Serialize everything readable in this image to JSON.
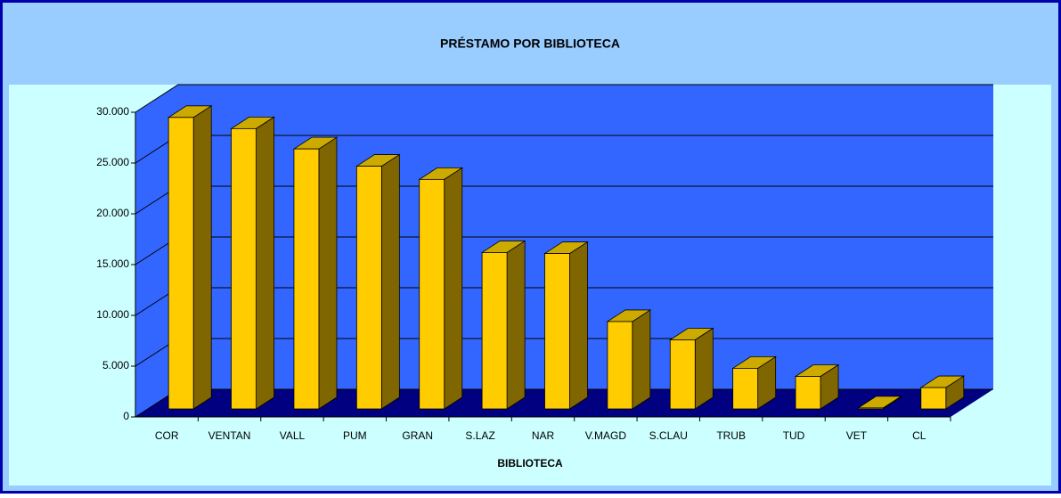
{
  "chart_data": {
    "type": "bar3d",
    "title": "PRÉSTAMO POR BIBLIOTECA",
    "x_label": "BIBLIOTECA",
    "categories": [
      "COR",
      "VENTAN",
      "VALL",
      "PUM",
      "GRAN",
      "S.LAZ",
      "NAR",
      "V.MAGD",
      "S.CLAU",
      "TRUB",
      "TUD",
      "VET",
      "CL"
    ],
    "values": [
      28700,
      27600,
      25600,
      23900,
      22600,
      15400,
      15300,
      8600,
      6800,
      4000,
      3200,
      100,
      2100
    ],
    "color": "#ffcc00",
    "ylim": [
      0,
      30000
    ],
    "yticks": [
      0,
      {
        "value": 5000,
        "label": "5.000"
      },
      {
        "value": 10000,
        "label": "10.000"
      },
      {
        "value": 15000,
        "label": "15.000"
      },
      {
        "value": 20000,
        "label": "20.000"
      },
      {
        "value": 25000,
        "label": "25.000"
      },
      {
        "value": 30000,
        "label": "30.000"
      }
    ],
    "grid": true
  }
}
